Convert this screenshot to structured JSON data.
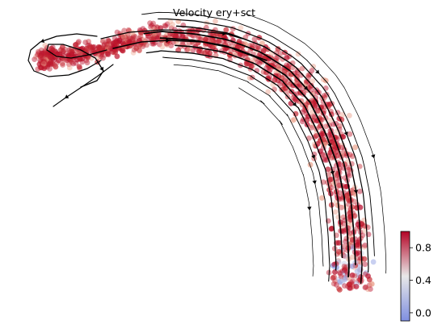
{
  "chart_data": {
    "type": "scatter",
    "title": "Velocity ery+sct",
    "xlabel": "",
    "ylabel": "",
    "grid": false,
    "overlay": "velocity-streamlines",
    "cells": {
      "colormap": "coolwarm",
      "dominant_value": 1.0,
      "value_range": [
        -0.1,
        1.0
      ]
    },
    "colorbar": {
      "placement": "right",
      "ticks": [
        0.8,
        0.4,
        0.0
      ],
      "tick_labels": [
        "0.8",
        "0.4",
        "0.0"
      ],
      "range": [
        -0.1,
        1.0
      ],
      "colors": {
        "low": "#7f8fe0",
        "mid": "#e8e8e8",
        "high": "#b40426"
      }
    }
  }
}
